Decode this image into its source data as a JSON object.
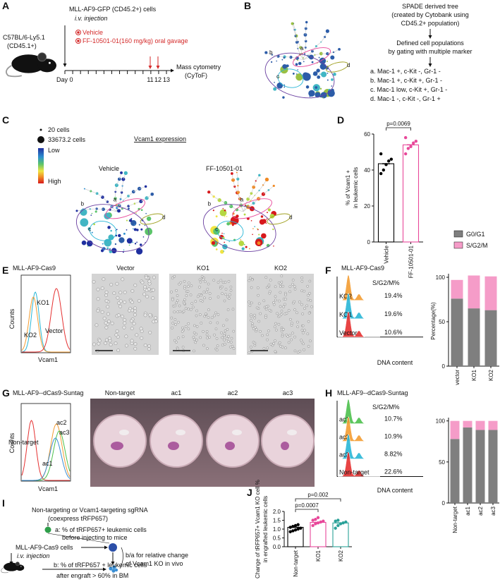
{
  "panels": [
    "A",
    "B",
    "C",
    "D",
    "E",
    "F",
    "G",
    "H",
    "I",
    "J"
  ],
  "panel_a": {
    "cells": "MLL-AF9-GFP (CD45.2+) cells",
    "injection": "i.v. injection",
    "vehicle": "Vehicle",
    "treatment": "FF-10501-01(160 mg/kg) oral gavage",
    "mouse": "C57BL/6-Ly5.1",
    "mouse_marker": "(CD45.1+)",
    "day0": "Day 0",
    "days": [
      "11",
      "12",
      "13"
    ],
    "readout": "Mass cytometry",
    "readout_method": "(CyToF)"
  },
  "panel_b": {
    "lines": [
      "SPADE derived tree",
      "(created by Cytobank using",
      "CD45.2+ population)",
      "Defined cell populations",
      "by gating with multiple marker"
    ],
    "populations": [
      {
        "tag": "a",
        "label": "a. Mac-1 +, c-Kit -, Gr-1 -",
        "color": "#e8489a"
      },
      {
        "tag": "b",
        "label": "b. Mac-1 +, c-Kit +, Gr-1 -",
        "color": "#6a3fa0"
      },
      {
        "tag": "c",
        "label": "c. Mac-1 low, c-Kit +, Gr-1 -",
        "color": "#29b6d6"
      },
      {
        "tag": "d",
        "label": "d. Mac-1 -, c-Kit -, Gr-1 +",
        "color": "#a0a020"
      }
    ]
  },
  "panel_c": {
    "size_small": "20 cells",
    "size_large": "33673.2 cells",
    "low": "Low",
    "high": "High",
    "title": "Vcam1 expression",
    "trees": [
      "Vehicle",
      "FF-10501-01"
    ]
  },
  "panel_e": {
    "title": "MLL-AF9-Cas9",
    "y_label": "Counts",
    "x_label": "Vcam1",
    "curves": [
      {
        "name": "KO1",
        "color": "#29b6d6"
      },
      {
        "name": "KO2",
        "color": "#f39c32"
      },
      {
        "name": "Vector",
        "color": "#e53030"
      }
    ],
    "images": [
      "Vector",
      "KO1",
      "KO2"
    ]
  },
  "panel_f": {
    "title": "MLL-AF9-Cas9",
    "header": "S/G2/M%",
    "x_label": "DNA content",
    "rows": [
      {
        "name": "KO2",
        "color": "#f39c32",
        "value": "19.4%"
      },
      {
        "name": "KO1",
        "color": "#29b6d6",
        "value": "19.6%"
      },
      {
        "name": "Vector",
        "color": "#e53030",
        "value": "10.6%"
      }
    ]
  },
  "panel_g": {
    "title": "MLL-AF9--dCas9-Suntag",
    "y_label": "Counts",
    "x_label": "Vcam1",
    "curves": [
      {
        "name": "Non-target",
        "color": "#e53030"
      },
      {
        "name": "ac2",
        "color": "#f39c32"
      },
      {
        "name": "ac3",
        "color": "#4cc04c"
      },
      {
        "name": "ac1",
        "color": "#3a8fd5"
      }
    ],
    "wells": [
      "Non-target",
      "ac1",
      "ac2",
      "ac3"
    ]
  },
  "panel_h": {
    "title": "MLL-AF9--dCas9-Suntag",
    "header": "S/G2/M%",
    "x_label": "DNA content",
    "rows": [
      {
        "name": "ac1",
        "color": "#4cc04c",
        "value": "10.7%"
      },
      {
        "name": "ac2",
        "color": "#f39c32",
        "value": "10.9%"
      },
      {
        "name": "ac3",
        "color": "#29b6d6",
        "value": "8.82%"
      },
      {
        "name": "Non-target",
        "color": "#e53030",
        "value": "22.6%"
      }
    ]
  },
  "panel_i": {
    "lines": [
      "Non-targeting or Vcam1-targeting sgRNA",
      "(coexpress tRFP657)",
      "a: % of tRFP657+ leukemic cells",
      "before injecting to mice",
      "MLL-AF9-Cas9 cells",
      "i.v. injection",
      "b/a for relative change",
      "of Vcam1 KO in vivo",
      "b: % of tRFP657 + leukemic cells",
      "after engraft > 60% in BM"
    ]
  },
  "chart_data": [
    {
      "type": "bar",
      "categories": [
        "Vehicle",
        "FF-10501-01"
      ],
      "values": [
        43.5,
        54
      ],
      "colors": [
        "#000000",
        "#e8489a"
      ],
      "points": [
        [
          38,
          40,
          43,
          45,
          46,
          49
        ],
        [
          49,
          52,
          53,
          55,
          56,
          58
        ]
      ],
      "ylim": [
        0,
        60
      ],
      "yticks": [
        0,
        20,
        40,
        60
      ],
      "ylabel": [
        "% of Vcam1 +",
        "in leukemic cells"
      ],
      "annotations": [
        "p=0.0069"
      ]
    },
    {
      "type": "stacked_bar",
      "categories": [
        "vector",
        "KO1",
        "KO2"
      ],
      "series": [
        {
          "name": "G0/G1",
          "color": "#7f7f7f",
          "values": [
            76,
            65,
            63
          ]
        },
        {
          "name": "S/G2/M",
          "color": "#f59cc8",
          "values": [
            21,
            37,
            38
          ]
        }
      ],
      "ylim": [
        0,
        104
      ],
      "yticks": [
        0,
        50,
        100
      ],
      "ylabel": [
        "Percentage(%)"
      ],
      "legend": "top"
    },
    {
      "type": "stacked_bar",
      "categories": [
        "Non-target",
        "ac1",
        "ac2",
        "ac3"
      ],
      "series": [
        {
          "color": "#7f7f7f",
          "values": [
            78,
            92,
            89,
            89
          ]
        },
        {
          "color": "#f59cc8",
          "values": [
            22,
            8,
            11,
            11
          ]
        }
      ],
      "ylim": [
        0,
        104
      ],
      "yticks": [
        0,
        50,
        100
      ]
    },
    {
      "type": "bar",
      "categories": [
        "Non-target",
        "KO1",
        "KO2"
      ],
      "values": [
        1.1,
        1.38,
        1.35
      ],
      "colors": [
        "#000000",
        "#e8489a",
        "#2aa198"
      ],
      "points": [
        [
          0.85,
          0.9,
          0.95,
          1.0,
          1.05,
          1.1,
          1.15,
          1.2,
          1.25
        ],
        [
          1.2,
          1.3,
          1.35,
          1.4,
          1.45,
          1.5,
          1.55,
          1.65
        ],
        [
          1.05,
          1.2,
          1.3,
          1.35,
          1.4,
          1.45,
          1.5
        ]
      ],
      "ylim": [
        0,
        2
      ],
      "yticks": [
        {
          "value": 0,
          "label": "0.0"
        },
        0.5,
        {
          "value": 1,
          "label": "1.0"
        },
        1.5,
        {
          "value": 2,
          "label": "2.0"
        }
      ],
      "ylabel": [
        "Change of tRFP657+ Vcam1 KO cell %",
        "in engrafted leukemic cells"
      ],
      "annotations": [
        "p=0.0007",
        "p=0.002"
      ]
    }
  ]
}
